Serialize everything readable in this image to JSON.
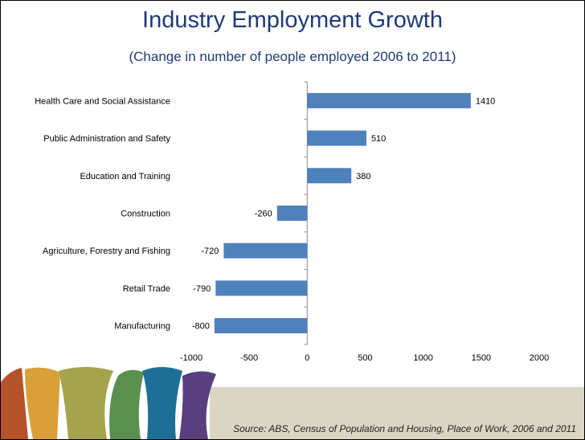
{
  "slide": {
    "title": "Industry Employment Growth",
    "subtitle": "(Change in number of people employed 2006 to 2011)",
    "source": "Source: ABS, Census of Population and Housing, Place of Work, 2006 and 2011",
    "footer_stripe_colors": [
      "#b5532a",
      "#d9a03a",
      "#a6a34e",
      "#5b8f4f",
      "#1e6f96",
      "#5a3f7e"
    ]
  },
  "chart_data": {
    "type": "bar",
    "orientation": "horizontal",
    "categories": [
      "Health Care and Social Assistance",
      "Public Administration and Safety",
      "Education and Training",
      "Construction",
      "Agriculture, Forestry and Fishing",
      "Retail Trade",
      "Manufacturing"
    ],
    "values": [
      1410,
      510,
      380,
      -260,
      -720,
      -790,
      -800
    ],
    "xlim": [
      -1000,
      2000
    ],
    "xticks": [
      -1000,
      -500,
      0,
      500,
      1000,
      1500,
      2000
    ],
    "bar_color": "#4f81bd",
    "grid": false,
    "legend": "none"
  }
}
